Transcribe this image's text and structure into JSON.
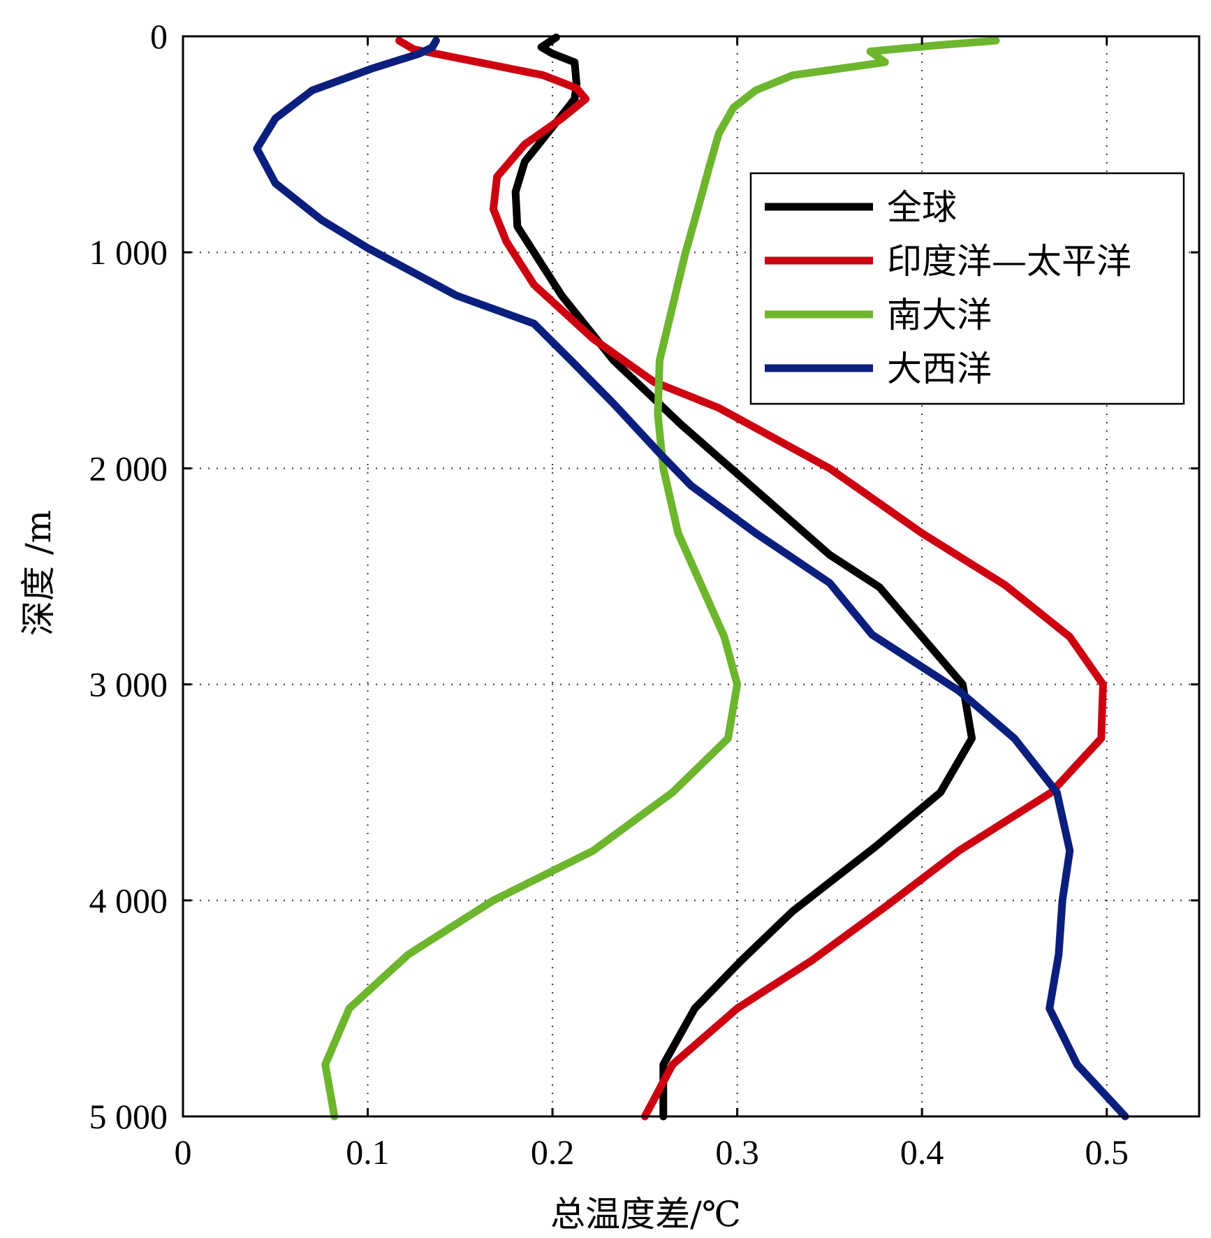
{
  "chart_data": {
    "type": "line",
    "orientation": "depth-profile",
    "xlabel": "总温度差/℃",
    "ylabel": "深度 /m",
    "xlim": [
      0,
      0.55
    ],
    "ylim": [
      0,
      5000
    ],
    "y_inverted": true,
    "x_ticks": [
      "0",
      "0.1",
      "0.2",
      "0.3",
      "0.4",
      "0.5"
    ],
    "x_tick_values": [
      0,
      0.1,
      0.2,
      0.3,
      0.4,
      0.5
    ],
    "y_ticks": [
      "0",
      "1 000",
      "2 000",
      "3 000",
      "4 000",
      "5 000"
    ],
    "y_tick_values": [
      0,
      1000,
      2000,
      3000,
      4000,
      5000
    ],
    "grid": true,
    "legend_position": "top-right",
    "series": [
      {
        "name": "全球",
        "color": "#000000",
        "points": [
          [
            0.202,
            5
          ],
          [
            0.194,
            50
          ],
          [
            0.2,
            80
          ],
          [
            0.212,
            120
          ],
          [
            0.213,
            220
          ],
          [
            0.212,
            290
          ],
          [
            0.2,
            420
          ],
          [
            0.185,
            580
          ],
          [
            0.18,
            720
          ],
          [
            0.181,
            880
          ],
          [
            0.19,
            1000
          ],
          [
            0.205,
            1200
          ],
          [
            0.233,
            1500
          ],
          [
            0.27,
            1800
          ],
          [
            0.31,
            2100
          ],
          [
            0.35,
            2400
          ],
          [
            0.377,
            2550
          ],
          [
            0.4,
            2780
          ],
          [
            0.422,
            3000
          ],
          [
            0.427,
            3250
          ],
          [
            0.41,
            3500
          ],
          [
            0.375,
            3750
          ],
          [
            0.33,
            4050
          ],
          [
            0.302,
            4280
          ],
          [
            0.277,
            4500
          ],
          [
            0.26,
            4760
          ],
          [
            0.26,
            5000
          ]
        ]
      },
      {
        "name": "印度洋—太平洋",
        "color": "#cc0010",
        "points": [
          [
            0.117,
            20
          ],
          [
            0.125,
            60
          ],
          [
            0.16,
            120
          ],
          [
            0.195,
            180
          ],
          [
            0.213,
            240
          ],
          [
            0.218,
            290
          ],
          [
            0.205,
            380
          ],
          [
            0.185,
            500
          ],
          [
            0.17,
            650
          ],
          [
            0.168,
            800
          ],
          [
            0.175,
            950
          ],
          [
            0.19,
            1150
          ],
          [
            0.222,
            1400
          ],
          [
            0.255,
            1600
          ],
          [
            0.29,
            1720
          ],
          [
            0.35,
            2000
          ],
          [
            0.4,
            2300
          ],
          [
            0.445,
            2540
          ],
          [
            0.48,
            2780
          ],
          [
            0.498,
            3000
          ],
          [
            0.497,
            3250
          ],
          [
            0.47,
            3500
          ],
          [
            0.42,
            3770
          ],
          [
            0.38,
            4030
          ],
          [
            0.34,
            4280
          ],
          [
            0.3,
            4500
          ],
          [
            0.265,
            4760
          ],
          [
            0.25,
            5000
          ]
        ]
      },
      {
        "name": "南大洋",
        "color": "#6cb52d",
        "points": [
          [
            0.44,
            20
          ],
          [
            0.41,
            40
          ],
          [
            0.372,
            70
          ],
          [
            0.38,
            120
          ],
          [
            0.33,
            180
          ],
          [
            0.31,
            250
          ],
          [
            0.298,
            330
          ],
          [
            0.29,
            450
          ],
          [
            0.285,
            600
          ],
          [
            0.277,
            850
          ],
          [
            0.272,
            1000
          ],
          [
            0.265,
            1250
          ],
          [
            0.258,
            1500
          ],
          [
            0.257,
            1750
          ],
          [
            0.26,
            2000
          ],
          [
            0.268,
            2300
          ],
          [
            0.28,
            2530
          ],
          [
            0.293,
            2780
          ],
          [
            0.3,
            3000
          ],
          [
            0.295,
            3250
          ],
          [
            0.265,
            3500
          ],
          [
            0.222,
            3770
          ],
          [
            0.168,
            4000
          ],
          [
            0.122,
            4250
          ],
          [
            0.09,
            4500
          ],
          [
            0.077,
            4760
          ],
          [
            0.082,
            5000
          ]
        ]
      },
      {
        "name": "大西洋",
        "color": "#0a1f7d",
        "points": [
          [
            0.137,
            20
          ],
          [
            0.135,
            50
          ],
          [
            0.128,
            80
          ],
          [
            0.102,
            150
          ],
          [
            0.07,
            250
          ],
          [
            0.05,
            380
          ],
          [
            0.04,
            520
          ],
          [
            0.05,
            680
          ],
          [
            0.075,
            850
          ],
          [
            0.1,
            980
          ],
          [
            0.148,
            1200
          ],
          [
            0.19,
            1330
          ],
          [
            0.21,
            1500
          ],
          [
            0.233,
            1700
          ],
          [
            0.258,
            1930
          ],
          [
            0.275,
            2080
          ],
          [
            0.31,
            2300
          ],
          [
            0.35,
            2530
          ],
          [
            0.373,
            2770
          ],
          [
            0.42,
            3030
          ],
          [
            0.45,
            3250
          ],
          [
            0.473,
            3500
          ],
          [
            0.48,
            3770
          ],
          [
            0.476,
            4000
          ],
          [
            0.474,
            4250
          ],
          [
            0.469,
            4500
          ],
          [
            0.484,
            4760
          ],
          [
            0.51,
            5000
          ]
        ]
      }
    ]
  }
}
